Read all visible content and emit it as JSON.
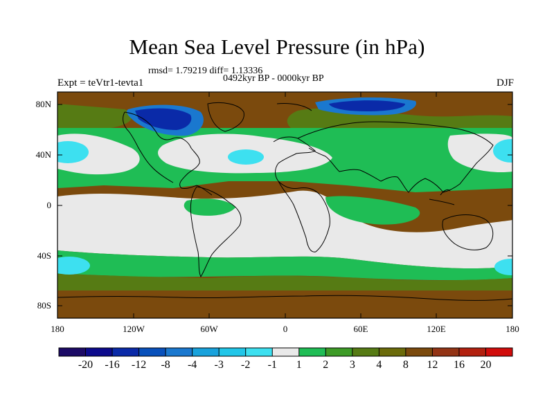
{
  "title": "Mean Sea Level Pressure (in hPa)",
  "stats_line": "rmsd= 1.79219 diff= 1.13336",
  "period_line": "0492kyr BP - 0000kyr BP",
  "experiment": "Expt = teVtr1-tevta1",
  "season": "DJF",
  "lat_labels": [
    "80N",
    "40N",
    "0",
    "40S",
    "80S"
  ],
  "lon_labels": [
    "180",
    "120W",
    "60W",
    "0",
    "60E",
    "120E",
    "180"
  ],
  "colorbar": {
    "colors": [
      "#1c0a66",
      "#0c0a8c",
      "#0a2aa8",
      "#0850bb",
      "#1a78cf",
      "#18a2dc",
      "#21c6e8",
      "#3de0f0",
      "#e9e9e9",
      "#1fbd55",
      "#3d9b26",
      "#567b14",
      "#6b6b0a",
      "#7b4a0d",
      "#933415",
      "#b2200f",
      "#d10c0b"
    ],
    "labels": [
      "-20",
      "-16",
      "-12",
      "-8",
      "-4",
      "-3",
      "-2",
      "-1",
      "1",
      "2",
      "3",
      "4",
      "8",
      "12",
      "16",
      "20"
    ]
  },
  "map_colors": {
    "brown": "#7b4a0d",
    "darkbrown": "#6b3f0f",
    "olive": "#567b14",
    "green": "#1fbd55",
    "grey": "#e9e9e9",
    "lightblue": "#3de0f0",
    "cyan": "#21c6e8",
    "blue": "#1a78cf",
    "navy": "#0a2aa8"
  }
}
